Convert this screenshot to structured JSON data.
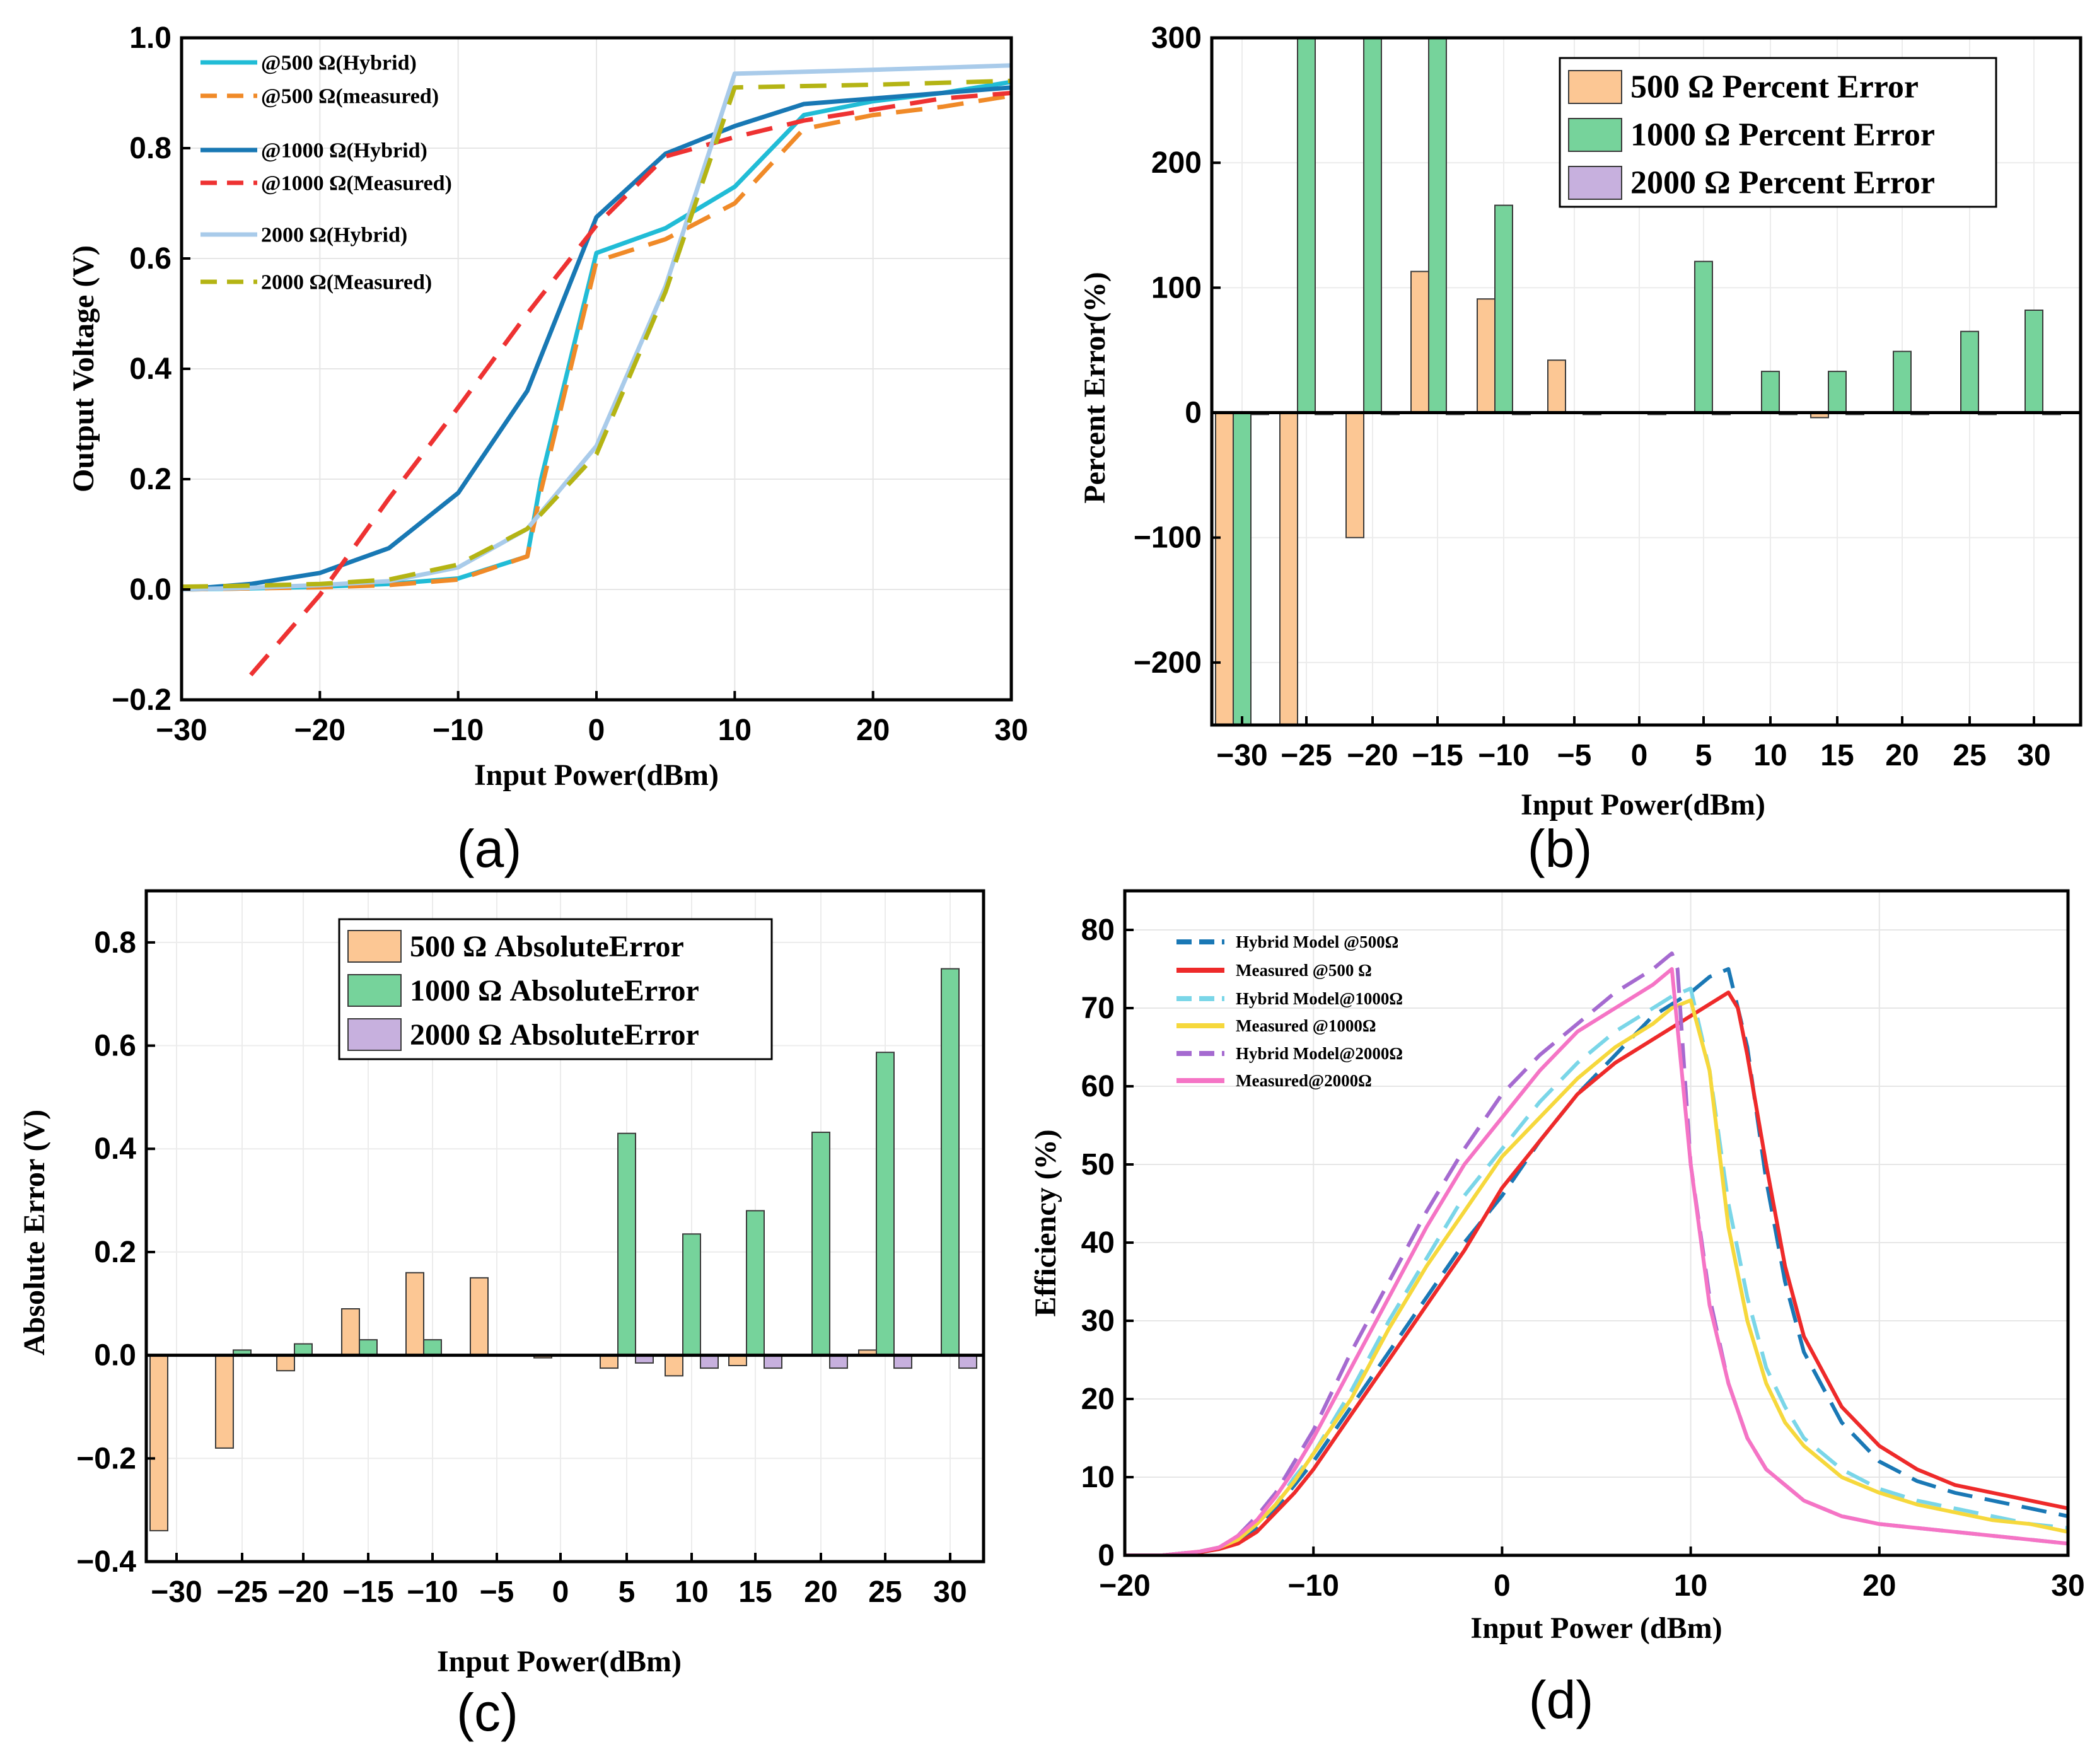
{
  "chart_data": [
    {
      "id": "a",
      "type": "line",
      "panel_label": "(a)",
      "xlabel": "Input Power(dBm)",
      "ylabel": "Output Voltage (V)",
      "xlim": [
        -30,
        30
      ],
      "ylim": [
        -0.2,
        1.0
      ],
      "xticks": [
        -30,
        -20,
        -10,
        0,
        10,
        20,
        30
      ],
      "xtick_labels": [
        "−30",
        "−20",
        "−10",
        "0",
        "10",
        "20",
        "30"
      ],
      "yticks": [
        -0.2,
        0.0,
        0.2,
        0.4,
        0.6,
        0.8,
        1.0
      ],
      "ytick_labels": [
        "−0.2",
        "0.0",
        "0.2",
        "0.4",
        "0.6",
        "0.8",
        "1.0"
      ],
      "grid": true,
      "legend_position": "top-left",
      "series": [
        {
          "name": "@500 Ω(Hybrid)",
          "color": "#21bcd6",
          "dash": "solid",
          "x": [
            -30,
            -25,
            -20,
            -15,
            -10,
            -5,
            -4,
            0,
            5,
            10,
            15,
            20,
            25,
            30
          ],
          "y": [
            0.0,
            0.002,
            0.005,
            0.01,
            0.02,
            0.06,
            0.2,
            0.61,
            0.655,
            0.73,
            0.86,
            0.885,
            0.9,
            0.92
          ]
        },
        {
          "name": "@500 Ω(measured)",
          "color": "#f08a28",
          "dash": "dashed",
          "x": [
            -30,
            -25,
            -20,
            -15,
            -10,
            -5,
            -4,
            0,
            5,
            10,
            15,
            20,
            25,
            30
          ],
          "y": [
            0.0,
            0.002,
            0.004,
            0.008,
            0.018,
            0.06,
            0.18,
            0.595,
            0.635,
            0.7,
            0.835,
            0.86,
            0.875,
            0.895
          ]
        },
        {
          "name": "@1000 Ω(Hybrid)",
          "color": "#1878b4",
          "dash": "solid",
          "x": [
            -30,
            -25,
            -20,
            -15,
            -10,
            -5,
            0,
            5,
            10,
            15,
            20,
            25,
            30
          ],
          "y": [
            0.0,
            0.01,
            0.03,
            0.075,
            0.175,
            0.36,
            0.675,
            0.79,
            0.84,
            0.88,
            0.89,
            0.9,
            0.91
          ]
        },
        {
          "name": "@1000 Ω(Measured)",
          "color": "#ee3232",
          "dash": "dashed",
          "x": [
            -25,
            -20,
            -15,
            -10,
            -5,
            0,
            5,
            10,
            15,
            20,
            25,
            30
          ],
          "y": [
            -0.155,
            -0.01,
            0.165,
            0.33,
            0.5,
            0.66,
            0.785,
            0.82,
            0.85,
            0.87,
            0.89,
            0.9
          ]
        },
        {
          "name": "2000 Ω(Hybrid)",
          "color": "#a9cbea",
          "dash": "solid",
          "x": [
            -30,
            -25,
            -20,
            -15,
            -10,
            -5,
            0,
            5,
            10,
            20,
            30
          ],
          "y": [
            0.0,
            0.003,
            0.008,
            0.015,
            0.04,
            0.11,
            0.26,
            0.55,
            0.935,
            0.942,
            0.95
          ]
        },
        {
          "name": "2000 Ω(Measured)",
          "color": "#b4b414",
          "dash": "dashed",
          "x": [
            -30,
            -25,
            -20,
            -15,
            -10,
            -5,
            0,
            5,
            10,
            20,
            30
          ],
          "y": [
            0.005,
            0.007,
            0.01,
            0.018,
            0.045,
            0.11,
            0.245,
            0.54,
            0.91,
            0.915,
            0.922
          ]
        }
      ]
    },
    {
      "id": "b",
      "type": "bar",
      "panel_label": "(b)",
      "xlabel": "Input Power(dBm)",
      "ylabel": "Percent Error(%)",
      "ylim": [
        -250,
        300
      ],
      "yticks": [
        -200,
        -100,
        0,
        100,
        200,
        300
      ],
      "ytick_labels": [
        "−200",
        "−100",
        "0",
        "100",
        "200",
        "300"
      ],
      "categories": [
        -30,
        -25,
        -20,
        -15,
        -10,
        -5,
        0,
        5,
        10,
        15,
        20,
        25,
        30
      ],
      "category_labels": [
        "−30",
        "−25",
        "−20",
        "−15",
        "−10",
        "−5",
        "0",
        "5",
        "10",
        "15",
        "20",
        "25",
        "30"
      ],
      "grid": true,
      "legend_position": "top-right",
      "series": [
        {
          "name": "500 Ω Percent Error",
          "color": "#fcc794",
          "values": [
            -250,
            -250,
            -100,
            113,
            91,
            42,
            0,
            0,
            0,
            -4,
            0,
            0,
            0
          ]
        },
        {
          "name": "1000 Ω Percent Error",
          "color": "#76d39b",
          "values": [
            -250,
            300,
            300,
            300,
            166,
            0,
            0,
            121,
            33,
            33,
            49,
            65,
            82
          ]
        },
        {
          "name": "2000 Ω Percent Error",
          "color": "#c7b0de",
          "values": [
            -1.5,
            -1.5,
            -1.5,
            -1.5,
            -1.5,
            -1.5,
            -1.5,
            -1.5,
            -1.5,
            -1.5,
            -1.5,
            -1.5,
            -1.5
          ]
        }
      ]
    },
    {
      "id": "c",
      "type": "bar",
      "panel_label": "(c)",
      "xlabel": "Input Power(dBm)",
      "ylabel": "Absolute Error (V)",
      "ylim": [
        -0.4,
        0.9
      ],
      "yticks": [
        -0.4,
        -0.2,
        0.0,
        0.2,
        0.4,
        0.6,
        0.8
      ],
      "ytick_labels": [
        "−0.4",
        "−0.2",
        "0.0",
        "0.2",
        "0.4",
        "0.6",
        "0.8"
      ],
      "categories": [
        -30,
        -25,
        -20,
        -15,
        -10,
        -5,
        0,
        5,
        10,
        15,
        20,
        25,
        30
      ],
      "category_labels": [
        "−30",
        "−25",
        "−20",
        "−15",
        "−10",
        "−5",
        "0",
        "5",
        "10",
        "15",
        "20",
        "25",
        "30"
      ],
      "grid": true,
      "legend_position": "top-center",
      "series": [
        {
          "name": "500 Ω AbsoluteError",
          "color": "#fcc794",
          "values": [
            -0.34,
            -0.18,
            -0.03,
            0.09,
            0.16,
            0.15,
            -0.005,
            -0.025,
            -0.04,
            -0.02,
            0.0,
            0.01,
            0.0
          ]
        },
        {
          "name": "1000 Ω AbsoluteError",
          "color": "#76d39b",
          "values": [
            0.0,
            0.01,
            0.022,
            0.03,
            0.03,
            0.0,
            0.0,
            0.43,
            0.235,
            0.28,
            0.432,
            0.587,
            0.749
          ]
        },
        {
          "name": "2000 Ω AbsoluteError",
          "color": "#c7b0de",
          "values": [
            0,
            0,
            0,
            0,
            0,
            0,
            0,
            -0.015,
            -0.025,
            -0.025,
            -0.025,
            -0.025,
            -0.025
          ]
        }
      ]
    },
    {
      "id": "d",
      "type": "line",
      "panel_label": "(d)",
      "xlabel": "Input Power (dBm)",
      "ylabel": "Efficiency (%)",
      "xlim": [
        -20,
        30
      ],
      "ylim": [
        0,
        85
      ],
      "xticks": [
        -20,
        -10,
        0,
        10,
        20,
        30
      ],
      "xtick_labels": [
        "−20",
        "−10",
        "0",
        "10",
        "20",
        "30"
      ],
      "yticks": [
        0,
        10,
        20,
        30,
        40,
        50,
        60,
        70,
        80
      ],
      "ytick_labels": [
        "0",
        "10",
        "20",
        "30",
        "40",
        "50",
        "60",
        "70",
        "80"
      ],
      "grid": true,
      "legend_position": "top-left",
      "series": [
        {
          "name": "Hybrid Model @500Ω",
          "color": "#1a78b5",
          "dash": "dashed",
          "x": [
            -20,
            -18,
            -16,
            -15,
            -14,
            -13,
            -12,
            -11,
            -10,
            -8,
            -6,
            -4,
            -2,
            0,
            2,
            4,
            6,
            8,
            10,
            11,
            12,
            13,
            14,
            15,
            16,
            18,
            20,
            22,
            24,
            26,
            28,
            30
          ],
          "y": [
            0,
            0,
            0.5,
            1,
            2,
            3.5,
            6,
            9,
            12,
            19,
            26,
            33,
            40,
            46,
            53,
            59,
            64,
            69,
            72,
            74,
            75,
            65,
            48,
            35,
            26,
            17,
            12,
            9.5,
            8,
            7,
            6,
            5
          ]
        },
        {
          "name": "Measured @500 Ω",
          "color": "#ee2a2a",
          "dash": "solid",
          "x": [
            -20,
            -18,
            -16,
            -15,
            -14,
            -13,
            -12,
            -11,
            -10,
            -8,
            -6,
            -4,
            -2,
            0,
            2,
            4,
            6,
            8,
            10,
            11,
            12,
            12.5,
            13,
            14,
            15,
            16,
            18,
            20,
            22,
            24,
            26,
            28,
            30
          ],
          "y": [
            0,
            0,
            0.4,
            0.8,
            1.5,
            3,
            5.5,
            8,
            11,
            18,
            25,
            32,
            39,
            47,
            53,
            59,
            63,
            66,
            69,
            70.5,
            72,
            70,
            64,
            50,
            37,
            28,
            19,
            14,
            11,
            9,
            8,
            7,
            6
          ]
        },
        {
          "name": "Hybrid Model@1000Ω",
          "color": "#7ad6e8",
          "dash": "dashed",
          "x": [
            -20,
            -18,
            -16,
            -15,
            -14,
            -13,
            -12,
            -11,
            -10,
            -8,
            -6,
            -4,
            -2,
            0,
            2,
            4,
            6,
            8,
            9,
            10,
            11,
            12,
            13,
            14,
            15,
            16,
            18,
            20,
            22,
            24,
            26,
            28,
            30
          ],
          "y": [
            0,
            0,
            0.5,
            1,
            2,
            4,
            6.5,
            10,
            13,
            21,
            30,
            38,
            46,
            52,
            58,
            63,
            67,
            70,
            71.5,
            72.5,
            62,
            45,
            33,
            24,
            19,
            15,
            11,
            8.5,
            7,
            6,
            5,
            4,
            3.5
          ]
        },
        {
          "name": "Measured @1000Ω",
          "color": "#f6d83c",
          "dash": "solid",
          "x": [
            -20,
            -18,
            -16,
            -15,
            -14,
            -13,
            -12,
            -11,
            -10,
            -8,
            -6,
            -4,
            -2,
            0,
            2,
            4,
            6,
            8,
            9,
            10,
            11,
            12,
            13,
            14,
            15,
            16,
            18,
            20,
            22,
            24,
            26,
            28,
            30
          ],
          "y": [
            0,
            0,
            0.5,
            1,
            2,
            4,
            6.5,
            9.5,
            13,
            20,
            29,
            37,
            44,
            51,
            56,
            61,
            65,
            68,
            70,
            71,
            62,
            42,
            30,
            22,
            17,
            14,
            10,
            8,
            6.5,
            5.5,
            4.5,
            4,
            3
          ]
        },
        {
          "name": "Hybrid Model@2000Ω",
          "color": "#a56ad0",
          "dash": "dashed",
          "x": [
            -20,
            -18,
            -16,
            -15,
            -14,
            -13,
            -12,
            -11,
            -10,
            -8,
            -6,
            -4,
            -2,
            0,
            2,
            4,
            6,
            8,
            9,
            9.3,
            10,
            11,
            12,
            13,
            14,
            16,
            18,
            20,
            22,
            24,
            26,
            28,
            30
          ],
          "y": [
            0,
            0,
            0.5,
            1,
            2.5,
            5,
            8,
            12,
            16,
            26,
            35,
            44,
            52,
            59,
            64,
            68,
            72,
            75,
            77,
            75,
            50,
            33,
            22,
            15,
            11,
            7,
            5,
            4,
            3.5,
            3,
            2.5,
            2,
            1.5
          ]
        },
        {
          "name": "Measured@2000Ω",
          "color": "#f574c5",
          "dash": "solid",
          "x": [
            -20,
            -18,
            -16,
            -15,
            -14,
            -13,
            -12,
            -11,
            -10,
            -8,
            -6,
            -4,
            -2,
            0,
            2,
            4,
            6,
            8,
            9,
            10,
            11,
            12,
            13,
            14,
            16,
            18,
            20,
            22,
            24,
            26,
            28,
            30
          ],
          "y": [
            0,
            0,
            0.5,
            1,
            2.5,
            4.5,
            7.5,
            11,
            15,
            24,
            33,
            42,
            50,
            56,
            62,
            67,
            70,
            73,
            75,
            50,
            32,
            22,
            15,
            11,
            7,
            5,
            4,
            3.5,
            3,
            2.5,
            2,
            1.5
          ]
        }
      ]
    }
  ]
}
